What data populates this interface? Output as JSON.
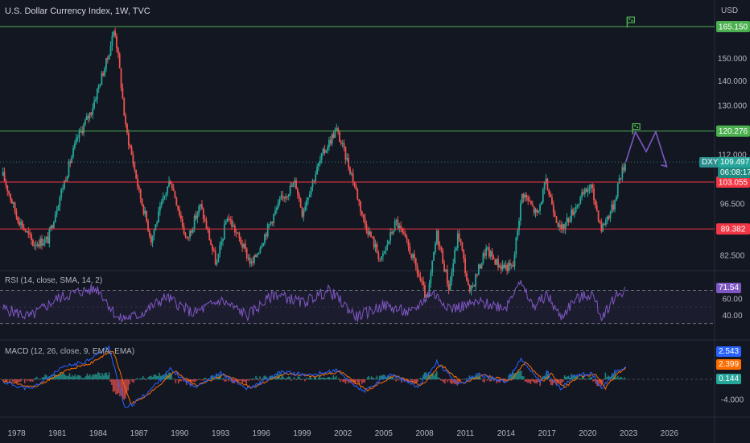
{
  "header": {
    "title": "U.S. Dollar Currency Index, 1W, TVC",
    "currency": "USD",
    "symbol_tag": "DXY",
    "last_price": "109.497",
    "countdown": "06:08:17"
  },
  "colors": {
    "background": "#131722",
    "up": "#26a69a",
    "down": "#ef5350",
    "green_level": "#4caf50",
    "red_level": "#f23645",
    "rsi": "#7e57c2",
    "macd": "#2962ff",
    "signal": "#ff6d00",
    "hist_up": "#26a69a",
    "hist_down": "#ef5350",
    "text": "#b2b5be"
  },
  "chart_data": [
    {
      "type": "candlestick",
      "title": "U.S. Dollar Currency Index, 1W, TVC",
      "scale": "log",
      "y_ticks": [
        165.15,
        150,
        140,
        130,
        112,
        103.055,
        96.5,
        89.382,
        82.5
      ],
      "y_tick_labels": [
        "165.150",
        "150.000",
        "140.000",
        "130.000",
        "112.000",
        "103.055",
        "96.500",
        "89.382",
        "82.500"
      ],
      "x_ticks": [
        "1978",
        "1981",
        "1984",
        "1987",
        "1990",
        "1993",
        "1996",
        "1999",
        "2002",
        "2005",
        "2008",
        "2011",
        "2014",
        "2017",
        "2020",
        "2023",
        "2026"
      ],
      "x_tick_values": [
        1978,
        1981,
        1984,
        1987,
        1990,
        1993,
        1996,
        1999,
        2002,
        2005,
        2008,
        2011,
        2014,
        2017,
        2020,
        2023,
        2026
      ],
      "price_path": [
        {
          "x": 1977.0,
          "y": 105.0
        },
        {
          "x": 1978.0,
          "y": 93.0
        },
        {
          "x": 1979.2,
          "y": 85.5
        },
        {
          "x": 1980.3,
          "y": 86.5
        },
        {
          "x": 1981.5,
          "y": 103.0
        },
        {
          "x": 1982.5,
          "y": 118.0
        },
        {
          "x": 1983.5,
          "y": 128.0
        },
        {
          "x": 1984.7,
          "y": 150.0
        },
        {
          "x": 1985.2,
          "y": 164.7
        },
        {
          "x": 1986.0,
          "y": 122.0
        },
        {
          "x": 1987.0,
          "y": 100.0
        },
        {
          "x": 1987.9,
          "y": 86.5
        },
        {
          "x": 1989.3,
          "y": 104.0
        },
        {
          "x": 1990.5,
          "y": 86.0
        },
        {
          "x": 1991.5,
          "y": 96.0
        },
        {
          "x": 1992.7,
          "y": 79.9
        },
        {
          "x": 1993.5,
          "y": 93.0
        },
        {
          "x": 1995.3,
          "y": 80.0
        },
        {
          "x": 1997.5,
          "y": 98.0
        },
        {
          "x": 1998.5,
          "y": 103.0
        },
        {
          "x": 1999.0,
          "y": 94.0
        },
        {
          "x": 2000.5,
          "y": 112.0
        },
        {
          "x": 2001.5,
          "y": 120.9
        },
        {
          "x": 2002.6,
          "y": 106.0
        },
        {
          "x": 2003.5,
          "y": 92.0
        },
        {
          "x": 2004.8,
          "y": 81.0
        },
        {
          "x": 2005.9,
          "y": 91.5
        },
        {
          "x": 2007.0,
          "y": 83.0
        },
        {
          "x": 2008.2,
          "y": 71.5
        },
        {
          "x": 2008.9,
          "y": 88.0
        },
        {
          "x": 2009.8,
          "y": 74.5
        },
        {
          "x": 2010.5,
          "y": 88.5
        },
        {
          "x": 2011.3,
          "y": 73.0
        },
        {
          "x": 2012.5,
          "y": 84.0
        },
        {
          "x": 2013.5,
          "y": 80.0
        },
        {
          "x": 2014.5,
          "y": 79.5
        },
        {
          "x": 2015.2,
          "y": 100.0
        },
        {
          "x": 2016.3,
          "y": 93.0
        },
        {
          "x": 2016.9,
          "y": 103.0
        },
        {
          "x": 2018.0,
          "y": 88.5
        },
        {
          "x": 2019.3,
          "y": 97.0
        },
        {
          "x": 2020.2,
          "y": 102.0
        },
        {
          "x": 2021.0,
          "y": 89.5
        },
        {
          "x": 2021.9,
          "y": 96.0
        },
        {
          "x": 2022.3,
          "y": 104.0
        },
        {
          "x": 2022.8,
          "y": 109.5
        }
      ],
      "levels": [
        {
          "value": 165.15,
          "label": "165.150",
          "color": "green"
        },
        {
          "value": 120.276,
          "label": "120.276",
          "color": "green"
        },
        {
          "value": 103.055,
          "label": "103.055",
          "color": "red"
        },
        {
          "value": 89.382,
          "label": "89.382",
          "color": "red"
        }
      ],
      "projection": [
        {
          "x": 2022.8,
          "y": 109.5
        },
        {
          "x": 2023.5,
          "y": 120.0
        },
        {
          "x": 2024.3,
          "y": 113.0
        },
        {
          "x": 2025.0,
          "y": 120.0
        },
        {
          "x": 2025.8,
          "y": 108.0
        }
      ],
      "flags": [
        {
          "x": 2022.9,
          "y": 170.0
        },
        {
          "x": 2023.3,
          "y": 123.0
        }
      ]
    },
    {
      "type": "line",
      "title": "RSI (14, close, SMA, 14, 2)",
      "current_value": "71.54",
      "y_tick_labels": [
        "60.00",
        "40.00"
      ],
      "band": [
        30,
        70
      ],
      "path": [
        {
          "x": 1977.0,
          "y": 48
        },
        {
          "x": 1979.0,
          "y": 38
        },
        {
          "x": 1981.0,
          "y": 60
        },
        {
          "x": 1982.5,
          "y": 68
        },
        {
          "x": 1984.0,
          "y": 72
        },
        {
          "x": 1985.5,
          "y": 35
        },
        {
          "x": 1987.0,
          "y": 40
        },
        {
          "x": 1989.0,
          "y": 62
        },
        {
          "x": 1991.0,
          "y": 42
        },
        {
          "x": 1993.0,
          "y": 58
        },
        {
          "x": 1995.0,
          "y": 40
        },
        {
          "x": 1997.0,
          "y": 66
        },
        {
          "x": 1999.0,
          "y": 55
        },
        {
          "x": 2001.0,
          "y": 70
        },
        {
          "x": 2003.0,
          "y": 38
        },
        {
          "x": 2005.0,
          "y": 52
        },
        {
          "x": 2007.0,
          "y": 42
        },
        {
          "x": 2008.5,
          "y": 68
        },
        {
          "x": 2010.0,
          "y": 48
        },
        {
          "x": 2012.0,
          "y": 55
        },
        {
          "x": 2014.0,
          "y": 50
        },
        {
          "x": 2014.9,
          "y": 82
        },
        {
          "x": 2016.0,
          "y": 50
        },
        {
          "x": 2017.0,
          "y": 65
        },
        {
          "x": 2018.0,
          "y": 37
        },
        {
          "x": 2019.0,
          "y": 58
        },
        {
          "x": 2020.3,
          "y": 66
        },
        {
          "x": 2021.0,
          "y": 38
        },
        {
          "x": 2022.0,
          "y": 62
        },
        {
          "x": 2022.8,
          "y": 71.54
        }
      ]
    },
    {
      "type": "line",
      "title": "MACD (12, 26, close, 9, EMA, EMA)",
      "macd_value": "2.543",
      "signal_value": "2.399",
      "histogram_value": "0.144",
      "y_tick_labels": [
        "-4.000"
      ],
      "series": [
        {
          "name": "MACD",
          "path": [
            {
              "x": 1977.0,
              "y": -0.5
            },
            {
              "x": 1979.0,
              "y": -2.0
            },
            {
              "x": 1981.5,
              "y": 2.5
            },
            {
              "x": 1983.0,
              "y": 3.5
            },
            {
              "x": 1984.8,
              "y": 6.5
            },
            {
              "x": 1986.0,
              "y": -6.0
            },
            {
              "x": 1987.5,
              "y": -3.0
            },
            {
              "x": 1989.3,
              "y": 2.0
            },
            {
              "x": 1991.0,
              "y": -1.5
            },
            {
              "x": 1993.0,
              "y": 1.2
            },
            {
              "x": 1995.0,
              "y": -2.0
            },
            {
              "x": 1997.5,
              "y": 1.5
            },
            {
              "x": 1999.5,
              "y": 0.8
            },
            {
              "x": 2001.5,
              "y": 1.8
            },
            {
              "x": 2003.5,
              "y": -2.5
            },
            {
              "x": 2005.5,
              "y": 1.0
            },
            {
              "x": 2007.5,
              "y": -1.5
            },
            {
              "x": 2008.9,
              "y": 3.5
            },
            {
              "x": 2010.5,
              "y": -1.0
            },
            {
              "x": 2012.0,
              "y": 1.0
            },
            {
              "x": 2014.0,
              "y": -0.5
            },
            {
              "x": 2015.1,
              "y": 4.0
            },
            {
              "x": 2016.5,
              "y": -0.5
            },
            {
              "x": 2017.0,
              "y": 1.5
            },
            {
              "x": 2018.0,
              "y": -2.0
            },
            {
              "x": 2019.0,
              "y": 0.8
            },
            {
              "x": 2020.3,
              "y": 1.2
            },
            {
              "x": 2021.0,
              "y": -2.0
            },
            {
              "x": 2022.0,
              "y": 1.5
            },
            {
              "x": 2022.8,
              "y": 2.543
            }
          ]
        },
        {
          "name": "Signal",
          "path": [
            {
              "x": 1977.0,
              "y": -0.3
            },
            {
              "x": 1979.3,
              "y": -1.6
            },
            {
              "x": 1981.8,
              "y": 2.0
            },
            {
              "x": 1983.3,
              "y": 3.0
            },
            {
              "x": 1985.1,
              "y": 5.8
            },
            {
              "x": 1986.4,
              "y": -5.0
            },
            {
              "x": 1987.9,
              "y": -2.6
            },
            {
              "x": 1989.6,
              "y": 1.6
            },
            {
              "x": 1991.3,
              "y": -1.2
            },
            {
              "x": 1993.3,
              "y": 1.0
            },
            {
              "x": 1995.3,
              "y": -1.7
            },
            {
              "x": 1997.8,
              "y": 1.2
            },
            {
              "x": 1999.8,
              "y": 0.6
            },
            {
              "x": 2001.8,
              "y": 1.5
            },
            {
              "x": 2003.8,
              "y": -2.2
            },
            {
              "x": 2005.8,
              "y": 0.8
            },
            {
              "x": 2007.8,
              "y": -1.2
            },
            {
              "x": 2009.2,
              "y": 3.0
            },
            {
              "x": 2010.8,
              "y": -0.8
            },
            {
              "x": 2012.3,
              "y": 0.8
            },
            {
              "x": 2014.3,
              "y": -0.3
            },
            {
              "x": 2015.4,
              "y": 3.4
            },
            {
              "x": 2016.8,
              "y": -0.3
            },
            {
              "x": 2017.3,
              "y": 1.2
            },
            {
              "x": 2018.3,
              "y": -1.7
            },
            {
              "x": 2019.3,
              "y": 0.6
            },
            {
              "x": 2020.6,
              "y": 1.0
            },
            {
              "x": 2021.3,
              "y": -1.7
            },
            {
              "x": 2022.2,
              "y": 1.2
            },
            {
              "x": 2022.8,
              "y": 2.399
            }
          ]
        }
      ]
    }
  ]
}
